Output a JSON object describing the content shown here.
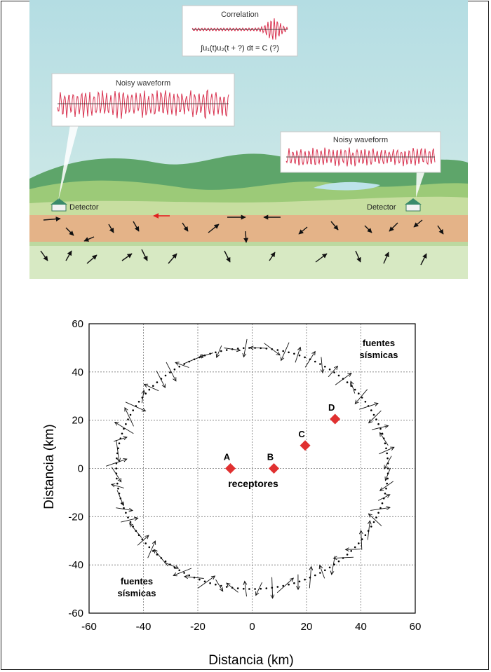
{
  "illustration": {
    "correlation": {
      "title": "Correlation",
      "formula": "∫u₁(t)u₂(t + ?) dt = C (?)"
    },
    "left_waveform_title": "Noisy waveform",
    "right_waveform_title": "Noisy waveform",
    "left_detector_label": "Detector",
    "right_detector_label": "Detector",
    "colors": {
      "sky": "#bfe0e4",
      "waveform": "#d8324f",
      "ground": "#e8b48a",
      "hills": "#8cc06d"
    }
  },
  "chart_data": {
    "type": "scatter",
    "xlabel": "Distancia (km)",
    "ylabel": "Distancia (km)",
    "xlim": [
      -60,
      60
    ],
    "ylim": [
      -60,
      60
    ],
    "xticks": [
      -60,
      -40,
      -20,
      0,
      20,
      40,
      60
    ],
    "yticks": [
      -60,
      -40,
      -20,
      0,
      20,
      40,
      60
    ],
    "grid": true,
    "circle": {
      "center": [
        0,
        0
      ],
      "radius": 50,
      "style": "dotted"
    },
    "receivers": [
      {
        "name": "A",
        "x": -8,
        "y": 0
      },
      {
        "name": "B",
        "x": 8,
        "y": 0
      },
      {
        "name": "C",
        "x": 19.5,
        "y": 9.5
      },
      {
        "name": "D",
        "x": 30.5,
        "y": 20.5
      }
    ],
    "annotations": {
      "receivers_label": "receptores",
      "sources_label_top": [
        "fuentes",
        "sísmicas"
      ],
      "sources_label_bottom": [
        "fuentes",
        "sísmicas"
      ]
    },
    "colors": {
      "receiver": "#e03030",
      "axis": "#000000"
    }
  }
}
